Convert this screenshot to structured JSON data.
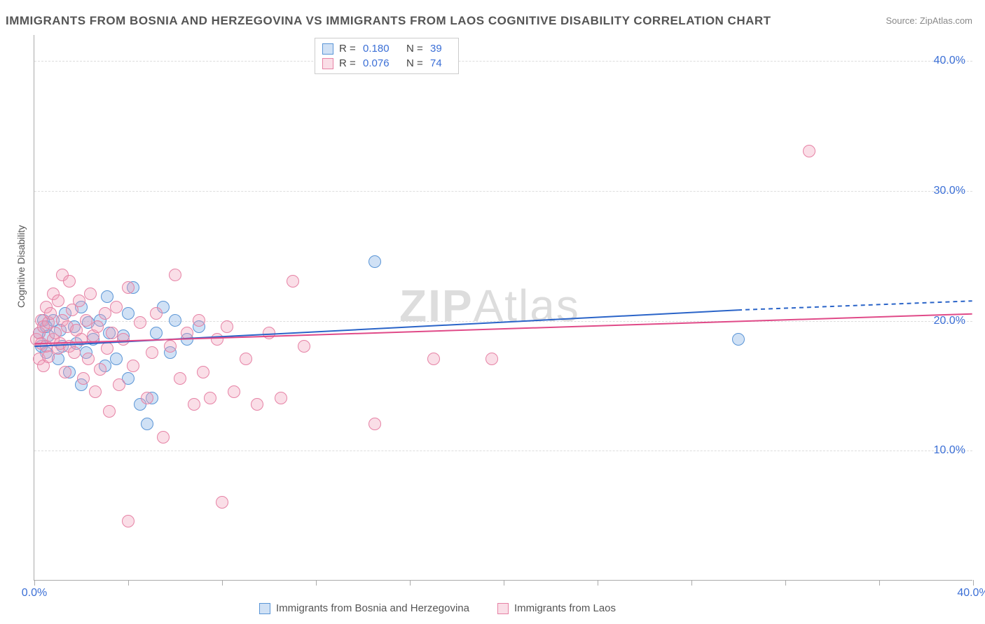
{
  "title": "IMMIGRANTS FROM BOSNIA AND HERZEGOVINA VS IMMIGRANTS FROM LAOS COGNITIVE DISABILITY CORRELATION CHART",
  "source": "Source: ZipAtlas.com",
  "watermark_a": "ZIP",
  "watermark_b": "Atlas",
  "y_axis_title": "Cognitive Disability",
  "chart": {
    "type": "scatter",
    "background_color": "#ffffff",
    "grid_color": "#dddddd",
    "axis_color": "#aaaaaa",
    "label_color": "#3b6fd6",
    "xlim": [
      0,
      40
    ],
    "ylim": [
      0,
      42
    ],
    "x_ticks": [
      0,
      40
    ],
    "x_tick_marks": [
      0,
      4,
      8,
      12,
      16,
      20,
      24,
      28,
      32,
      36,
      40
    ],
    "y_ticks": [
      10,
      20,
      30,
      40
    ],
    "marker_radius": 9,
    "marker_stroke_width": 1.5,
    "trend_line_width": 2,
    "series": [
      {
        "name": "Immigrants from Bosnia and Herzegovina",
        "fill": "rgba(120,170,225,0.35)",
        "stroke": "#5a95d6",
        "line_color": "#2a64c8",
        "r_label": "R =",
        "r": "0.180",
        "n_label": "N =",
        "n": "39",
        "trend": {
          "x1": 0,
          "y1": 18.0,
          "x2": 30,
          "y2": 20.8,
          "dash_x2": 40,
          "dash_y2": 21.5
        },
        "points": [
          [
            0.2,
            19.0
          ],
          [
            0.3,
            18.0
          ],
          [
            0.4,
            20.0
          ],
          [
            0.5,
            17.5
          ],
          [
            0.5,
            19.5
          ],
          [
            0.6,
            18.8
          ],
          [
            0.8,
            20.0
          ],
          [
            1.0,
            17.0
          ],
          [
            1.1,
            19.2
          ],
          [
            1.2,
            18.0
          ],
          [
            1.3,
            20.5
          ],
          [
            1.5,
            16.0
          ],
          [
            1.7,
            19.5
          ],
          [
            1.8,
            18.2
          ],
          [
            2.0,
            15.0
          ],
          [
            2.0,
            21.0
          ],
          [
            2.2,
            17.5
          ],
          [
            2.3,
            19.8
          ],
          [
            2.5,
            18.5
          ],
          [
            2.8,
            20.0
          ],
          [
            3.0,
            16.5
          ],
          [
            3.1,
            21.8
          ],
          [
            3.2,
            19.0
          ],
          [
            3.5,
            17.0
          ],
          [
            3.8,
            18.8
          ],
          [
            4.0,
            20.5
          ],
          [
            4.2,
            22.5
          ],
          [
            4.5,
            13.5
          ],
          [
            4.8,
            12.0
          ],
          [
            5.0,
            14.0
          ],
          [
            5.2,
            19.0
          ],
          [
            5.5,
            21.0
          ],
          [
            5.8,
            17.5
          ],
          [
            6.0,
            20.0
          ],
          [
            6.5,
            18.5
          ],
          [
            7.0,
            19.5
          ],
          [
            14.5,
            24.5
          ],
          [
            30.0,
            18.5
          ],
          [
            4.0,
            15.5
          ]
        ]
      },
      {
        "name": "Immigrants from Laos",
        "fill": "rgba(240,160,185,0.35)",
        "stroke": "#e682a5",
        "line_color": "#e04a88",
        "r_label": "R =",
        "r": "0.076",
        "n_label": "N =",
        "n": "74",
        "trend": {
          "x1": 0,
          "y1": 18.2,
          "x2": 40,
          "y2": 20.5,
          "dash_x2": 40,
          "dash_y2": 20.5
        },
        "points": [
          [
            0.1,
            18.5
          ],
          [
            0.2,
            19.0
          ],
          [
            0.2,
            17.0
          ],
          [
            0.3,
            20.0
          ],
          [
            0.3,
            18.2
          ],
          [
            0.4,
            19.5
          ],
          [
            0.4,
            16.5
          ],
          [
            0.5,
            21.0
          ],
          [
            0.5,
            18.0
          ],
          [
            0.6,
            19.8
          ],
          [
            0.6,
            17.2
          ],
          [
            0.7,
            20.5
          ],
          [
            0.8,
            18.5
          ],
          [
            0.8,
            22.0
          ],
          [
            0.9,
            19.0
          ],
          [
            1.0,
            17.8
          ],
          [
            1.0,
            21.5
          ],
          [
            1.1,
            18.2
          ],
          [
            1.2,
            20.0
          ],
          [
            1.2,
            23.5
          ],
          [
            1.3,
            16.0
          ],
          [
            1.4,
            19.5
          ],
          [
            1.5,
            18.0
          ],
          [
            1.5,
            23.0
          ],
          [
            1.6,
            20.8
          ],
          [
            1.7,
            17.5
          ],
          [
            1.8,
            19.2
          ],
          [
            1.9,
            21.5
          ],
          [
            2.0,
            18.5
          ],
          [
            2.1,
            15.5
          ],
          [
            2.2,
            20.0
          ],
          [
            2.3,
            17.0
          ],
          [
            2.4,
            22.0
          ],
          [
            2.5,
            18.8
          ],
          [
            2.6,
            14.5
          ],
          [
            2.7,
            19.5
          ],
          [
            2.8,
            16.2
          ],
          [
            3.0,
            20.5
          ],
          [
            3.1,
            17.8
          ],
          [
            3.2,
            13.0
          ],
          [
            3.3,
            19.0
          ],
          [
            3.5,
            21.0
          ],
          [
            3.6,
            15.0
          ],
          [
            3.8,
            18.5
          ],
          [
            4.0,
            22.5
          ],
          [
            4.2,
            16.5
          ],
          [
            4.5,
            19.8
          ],
          [
            4.8,
            14.0
          ],
          [
            5.0,
            17.5
          ],
          [
            5.2,
            20.5
          ],
          [
            5.5,
            11.0
          ],
          [
            5.8,
            18.0
          ],
          [
            6.0,
            23.5
          ],
          [
            6.2,
            15.5
          ],
          [
            6.5,
            19.0
          ],
          [
            6.8,
            13.5
          ],
          [
            7.0,
            20.0
          ],
          [
            7.2,
            16.0
          ],
          [
            7.5,
            14.0
          ],
          [
            7.8,
            18.5
          ],
          [
            8.0,
            6.0
          ],
          [
            8.2,
            19.5
          ],
          [
            8.5,
            14.5
          ],
          [
            9.0,
            17.0
          ],
          [
            9.5,
            13.5
          ],
          [
            10.0,
            19.0
          ],
          [
            10.5,
            14.0
          ],
          [
            11.0,
            23.0
          ],
          [
            11.5,
            18.0
          ],
          [
            14.5,
            12.0
          ],
          [
            17.0,
            17.0
          ],
          [
            19.5,
            17.0
          ],
          [
            33.0,
            33.0
          ],
          [
            4.0,
            4.5
          ]
        ]
      }
    ]
  },
  "legend_bottom": [
    "Immigrants from Bosnia and Herzegovina",
    "Immigrants from Laos"
  ]
}
